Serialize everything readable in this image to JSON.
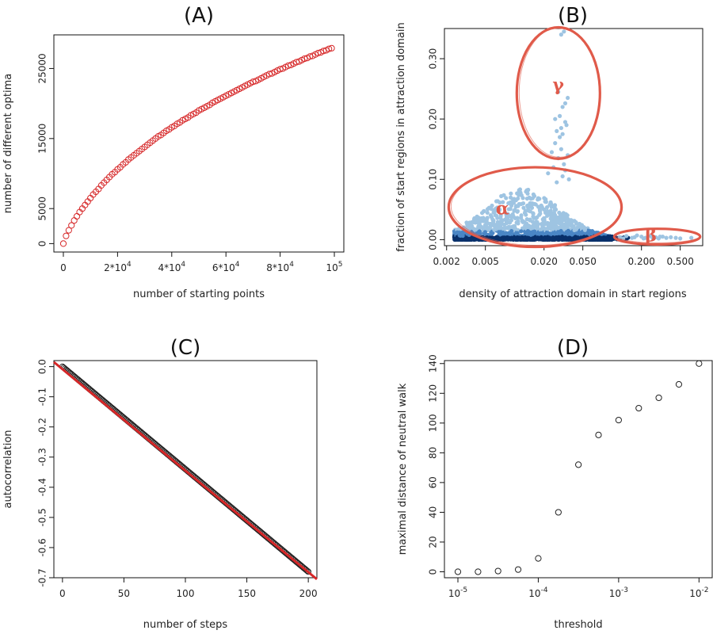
{
  "colors": {
    "red": "#d62728",
    "ellipse": "#e05a4a",
    "light_blue": "#9ec4e2",
    "mid_blue": "#4a86c5",
    "dark_blue": "#08306b",
    "black": "#222222"
  },
  "chart_data": [
    {
      "panel": "A",
      "title": "(A)",
      "type": "scatter",
      "xlabel": "number of starting points",
      "ylabel": "number of different optima",
      "xlim": [
        0,
        100000
      ],
      "ylim": [
        0,
        29000
      ],
      "x_ticks": [
        {
          "value": 0,
          "base": "0",
          "sup": ""
        },
        {
          "value": 20000,
          "base": "2*10",
          "sup": "4"
        },
        {
          "value": 40000,
          "base": "4*10",
          "sup": "4"
        },
        {
          "value": 60000,
          "base": "6*10",
          "sup": "4"
        },
        {
          "value": 80000,
          "base": "8*10",
          "sup": "4"
        },
        {
          "value": 100000,
          "base": "10",
          "sup": "5"
        }
      ],
      "y_ticks": [
        {
          "value": 0,
          "label": "0"
        },
        {
          "value": 5000,
          "label": "5000"
        },
        {
          "value": 15000,
          "label": "15000"
        },
        {
          "value": 25000,
          "label": "25000"
        }
      ],
      "series": [
        {
          "marker": "open-circle",
          "color": "#d62728",
          "x": [
            0,
            1000,
            2000,
            3000,
            4000,
            5000,
            6000,
            7000,
            8000,
            9000,
            10000,
            11000,
            12000,
            13000,
            14000,
            15000,
            16000,
            17000,
            18000,
            19000,
            20000,
            21000,
            22000,
            23000,
            24000,
            25000,
            26000,
            27000,
            28000,
            29000,
            30000,
            31000,
            32000,
            33000,
            34000,
            35000,
            36000,
            37000,
            38000,
            39000,
            40000,
            41000,
            42000,
            43000,
            44000,
            45000,
            46000,
            47000,
            48000,
            49000,
            50000,
            51000,
            52000,
            53000,
            54000,
            55000,
            56000,
            57000,
            58000,
            59000,
            60000,
            61000,
            62000,
            63000,
            64000,
            65000,
            66000,
            67000,
            68000,
            69000,
            70000,
            71000,
            72000,
            73000,
            74000,
            75000,
            76000,
            77000,
            78000,
            79000,
            80000,
            81000,
            82000,
            83000,
            84000,
            85000,
            86000,
            87000,
            88000,
            89000,
            90000,
            91000,
            92000,
            93000,
            94000,
            95000,
            96000,
            97000,
            98000,
            99000
          ],
          "y": [
            0,
            1100,
            1900,
            2600,
            3300,
            3900,
            4500,
            5000,
            5500,
            6000,
            6500,
            7000,
            7400,
            7800,
            8300,
            8700,
            9100,
            9500,
            9900,
            10200,
            10600,
            10900,
            11300,
            11600,
            12000,
            12300,
            12600,
            12900,
            13200,
            13500,
            13800,
            14100,
            14400,
            14700,
            15000,
            15300,
            15500,
            15800,
            16100,
            16300,
            16600,
            16800,
            17100,
            17300,
            17600,
            17800,
            18000,
            18300,
            18500,
            18700,
            19000,
            19200,
            19400,
            19600,
            19800,
            20100,
            20300,
            20500,
            20700,
            20900,
            21100,
            21300,
            21500,
            21700,
            21900,
            22100,
            22300,
            22500,
            22700,
            22900,
            23100,
            23200,
            23400,
            23600,
            23800,
            24000,
            24200,
            24300,
            24500,
            24700,
            24900,
            25000,
            25200,
            25400,
            25500,
            25700,
            25900,
            26000,
            26200,
            26400,
            26500,
            26700,
            26800,
            27000,
            27200,
            27300,
            27500,
            27600,
            27800,
            27900
          ]
        }
      ]
    },
    {
      "panel": "B",
      "title": "(B)",
      "type": "scatter",
      "xlabel": "density of attraction domain in start regions",
      "ylabel": "fraction of start regions in attraction domain",
      "x_scale": "log",
      "xlim": [
        0.0019,
        0.85
      ],
      "ylim": [
        -0.01,
        0.35
      ],
      "x_ticks": [
        {
          "value": 0.002,
          "label": "0.002"
        },
        {
          "value": 0.005,
          "label": "0.005"
        },
        {
          "value": 0.02,
          "label": "0.020"
        },
        {
          "value": 0.05,
          "label": "0.050"
        },
        {
          "value": 0.2,
          "label": "0.200"
        },
        {
          "value": 0.5,
          "label": "0.500"
        }
      ],
      "y_ticks": [
        {
          "value": 0.0,
          "label": "0.00"
        },
        {
          "value": 0.1,
          "label": "0.10"
        },
        {
          "value": 0.2,
          "label": "0.20"
        },
        {
          "value": 0.3,
          "label": "0.30"
        }
      ],
      "annotations": [
        {
          "label": "α",
          "x": 0.0075,
          "y": 0.05,
          "ellipse": {
            "x_range": [
              0.0021,
              0.125
            ],
            "y_range": [
              -0.012,
              0.12
            ]
          }
        },
        {
          "label": "β",
          "x": 0.25,
          "y": 0.005,
          "ellipse": {
            "x_range": [
              0.105,
              0.8
            ],
            "y_range": [
              -0.008,
              0.018
            ]
          }
        },
        {
          "label": "γ",
          "x": 0.028,
          "y": 0.255,
          "ellipse": {
            "x_range": [
              0.0105,
              0.075
            ],
            "y_range": [
              0.134,
              0.352
            ]
          }
        }
      ],
      "series": [
        {
          "color": "#9ec4e2",
          "note_region": "upper cloud",
          "x": [
            0.03,
            0.032,
            0.028,
            0.035,
            0.033,
            0.031,
            0.029,
            0.033,
            0.026,
            0.03,
            0.034,
            0.031,
            0.029,
            0.026,
            0.027,
            0.03,
            0.024,
            0.035,
            0.028,
            0.032,
            0.025,
            0.033,
            0.022,
            0.031,
            0.036,
            0.027
          ],
          "y": [
            0.34,
            0.345,
            0.245,
            0.235,
            0.226,
            0.22,
            0.205,
            0.195,
            0.2,
            0.185,
            0.19,
            0.175,
            0.17,
            0.16,
            0.18,
            0.15,
            0.145,
            0.14,
            0.135,
            0.125,
            0.12,
            0.115,
            0.11,
            0.105,
            0.1,
            0.095
          ]
        },
        {
          "color": "#9ec4e2",
          "note_region": "beta tail",
          "x": [
            0.12,
            0.14,
            0.16,
            0.18,
            0.2,
            0.22,
            0.25,
            0.28,
            0.3,
            0.33,
            0.36,
            0.4,
            0.45,
            0.5,
            0.13,
            0.17,
            0.21,
            0.26,
            0.31,
            0.65
          ],
          "y": [
            0.004,
            0.006,
            0.003,
            0.007,
            0.005,
            0.003,
            0.006,
            0.004,
            0.002,
            0.005,
            0.003,
            0.004,
            0.003,
            0.002,
            0.002,
            0.004,
            0.002,
            0.003,
            0.005,
            0.003
          ]
        }
      ]
    },
    {
      "panel": "C",
      "title": "(C)",
      "type": "line",
      "xlabel": "number of steps",
      "ylabel": "autocorrelation",
      "xlim": [
        -7,
        207
      ],
      "ylim": [
        -0.7,
        0.02
      ],
      "x_ticks": [
        {
          "value": 0,
          "label": "0"
        },
        {
          "value": 50,
          "label": "50"
        },
        {
          "value": 100,
          "label": "100"
        },
        {
          "value": 150,
          "label": "150"
        },
        {
          "value": 200,
          "label": "200"
        }
      ],
      "y_ticks": [
        {
          "value": 0.0,
          "label": "0.0"
        },
        {
          "value": -0.1,
          "label": "-0.1"
        },
        {
          "value": -0.2,
          "label": "-0.2"
        },
        {
          "value": -0.3,
          "label": "-0.3"
        },
        {
          "value": -0.4,
          "label": "-0.4"
        },
        {
          "value": -0.5,
          "label": "-0.5"
        },
        {
          "value": -0.6,
          "label": "-0.6"
        },
        {
          "value": -0.7,
          "label": "-0.7"
        }
      ],
      "points": {
        "marker": "open-circle",
        "color": "#222222",
        "x_start": 0,
        "x_end": 200,
        "y_start": 0.0,
        "y_end": -0.68
      },
      "fit_line": {
        "color": "#d62728",
        "x": [
          -7,
          207
        ],
        "y": [
          0.015,
          -0.705
        ]
      }
    },
    {
      "panel": "D",
      "title": "(D)",
      "type": "scatter",
      "xlabel": "threshold",
      "ylabel": "maximal distance of neutral walk",
      "x_scale": "log",
      "xlim": [
        6.8e-06,
        0.0146
      ],
      "ylim": [
        -4,
        142
      ],
      "x_ticks": [
        {
          "value": 1e-05,
          "base": "10",
          "sup": "-5"
        },
        {
          "value": 0.0001,
          "base": "10",
          "sup": "-4"
        },
        {
          "value": 0.001,
          "base": "10",
          "sup": "-3"
        },
        {
          "value": 0.01,
          "base": "10",
          "sup": "-2"
        }
      ],
      "y_ticks": [
        {
          "value": 0,
          "label": "0"
        },
        {
          "value": 20,
          "label": "20"
        },
        {
          "value": 40,
          "label": "40"
        },
        {
          "value": 60,
          "label": "60"
        },
        {
          "value": 80,
          "label": "80"
        },
        {
          "value": 100,
          "label": "100"
        },
        {
          "value": 120,
          "label": "120"
        },
        {
          "value": 140,
          "label": "140"
        }
      ],
      "series": [
        {
          "marker": "open-circle",
          "color": "#222222",
          "x": [
            1e-05,
            1.78e-05,
            3.16e-05,
            5.62e-05,
            0.0001,
            0.000178,
            0.000316,
            0.000562,
            0.001,
            0.00178,
            0.00316,
            0.00562,
            0.01
          ],
          "y": [
            0,
            0,
            0.5,
            1.5,
            9,
            40,
            72,
            92,
            102,
            110,
            117,
            126,
            140
          ]
        }
      ]
    }
  ]
}
